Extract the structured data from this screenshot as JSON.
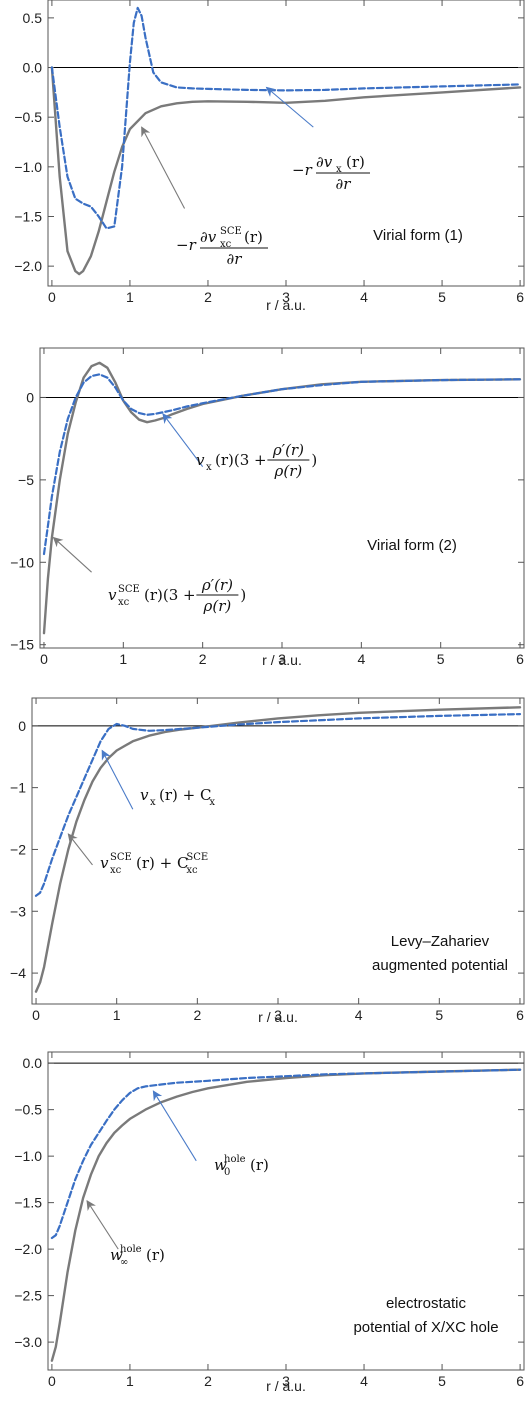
{
  "colors": {
    "grey_series": "#7a7a7a",
    "blue_series": "#3a6fc4",
    "zero_line": "#000000",
    "frame": "#555555"
  },
  "chart_data": [
    {
      "type": "line",
      "title": "",
      "xlabel": "r / a.u.",
      "ylabel": "",
      "xlim": [
        -0.05,
        6.05
      ],
      "ylim": [
        -2.2,
        0.68
      ],
      "xticks": [
        0,
        1,
        2,
        3,
        4,
        5,
        6
      ],
      "yticks": [
        0.5,
        0.0,
        -0.5,
        -1.0,
        -1.5,
        -2.0
      ],
      "ytick_labels": [
        "0.5",
        "0.0",
        "-0.5",
        "-1.0",
        "-1.5",
        "-2.0"
      ],
      "caption": [
        "Virial form (1)"
      ],
      "series": [
        {
          "style": "solid-grey",
          "x": [
            0,
            0.1,
            0.2,
            0.3,
            0.35,
            0.4,
            0.5,
            0.6,
            0.7,
            0.8,
            0.9,
            1.0,
            1.2,
            1.4,
            1.6,
            1.8,
            2.0,
            2.5,
            3.0,
            3.5,
            4.0,
            5.0,
            6.0
          ],
          "y": [
            0,
            -1.1,
            -1.85,
            -2.05,
            -2.08,
            -2.05,
            -1.9,
            -1.65,
            -1.35,
            -1.05,
            -0.8,
            -0.62,
            -0.46,
            -0.39,
            -0.36,
            -0.345,
            -0.34,
            -0.345,
            -0.355,
            -0.335,
            -0.3,
            -0.25,
            -0.2
          ]
        },
        {
          "style": "dashed-blue",
          "x": [
            0,
            0.1,
            0.2,
            0.3,
            0.4,
            0.5,
            0.6,
            0.7,
            0.8,
            0.9,
            1.0,
            1.05,
            1.1,
            1.15,
            1.2,
            1.3,
            1.4,
            1.6,
            1.8,
            2.0,
            2.5,
            3.0,
            3.5,
            4.0,
            5.0,
            6.0
          ],
          "y": [
            0,
            -0.6,
            -1.1,
            -1.32,
            -1.37,
            -1.4,
            -1.5,
            -1.62,
            -1.6,
            -1.0,
            0.05,
            0.45,
            0.6,
            0.52,
            0.3,
            -0.05,
            -0.15,
            -0.2,
            -0.21,
            -0.215,
            -0.225,
            -0.23,
            -0.225,
            -0.21,
            -0.19,
            -0.17
          ]
        }
      ],
      "annotations": [
        {
          "series": "dashed-blue",
          "label": {
            "prefix": "-r",
            "num_symbol": "∂v",
            "num_sub": "x",
            "num_arg": "(r)",
            "den": "∂r"
          }
        },
        {
          "series": "solid-grey",
          "label": {
            "prefix": "-r",
            "num_symbol": "∂v",
            "num_sub": "xc",
            "num_sup": "SCE",
            "num_arg": "(r)",
            "den": "∂r"
          }
        }
      ]
    },
    {
      "type": "line",
      "title": "",
      "xlabel": "r / a.u.",
      "ylabel": "",
      "xlim": [
        -0.05,
        6.05
      ],
      "ylim": [
        -15.2,
        3.0
      ],
      "xticks": [
        0,
        1,
        2,
        3,
        4,
        5,
        6
      ],
      "yticks": [
        0,
        -5,
        -10,
        -15
      ],
      "ytick_labels": [
        "0",
        "-5",
        "-10",
        "-15"
      ],
      "caption": [
        "Virial form (2)"
      ],
      "series": [
        {
          "style": "solid-grey",
          "x": [
            0,
            0.05,
            0.1,
            0.2,
            0.3,
            0.4,
            0.5,
            0.6,
            0.7,
            0.8,
            0.9,
            1.0,
            1.1,
            1.2,
            1.3,
            1.4,
            1.5,
            1.6,
            1.8,
            2.0,
            2.5,
            3.0,
            3.5,
            4.0,
            5.0,
            6.0
          ],
          "y": [
            -14.3,
            -11.0,
            -8.5,
            -5.0,
            -2.2,
            -0.3,
            1.2,
            1.9,
            2.1,
            1.8,
            0.9,
            -0.2,
            -0.9,
            -1.35,
            -1.5,
            -1.4,
            -1.25,
            -1.05,
            -0.7,
            -0.4,
            0.1,
            0.5,
            0.8,
            0.95,
            1.05,
            1.1
          ]
        },
        {
          "style": "dashed-blue",
          "x": [
            0,
            0.05,
            0.1,
            0.2,
            0.3,
            0.4,
            0.5,
            0.6,
            0.7,
            0.8,
            0.9,
            1.0,
            1.1,
            1.2,
            1.3,
            1.4,
            1.6,
            1.8,
            2.0,
            2.5,
            3.0,
            3.5,
            4.0,
            5.0,
            6.0
          ],
          "y": [
            -9.5,
            -7.8,
            -6.0,
            -3.3,
            -1.3,
            0.0,
            0.9,
            1.3,
            1.4,
            1.2,
            0.6,
            -0.2,
            -0.7,
            -0.95,
            -1.05,
            -1.0,
            -0.8,
            -0.55,
            -0.35,
            0.1,
            0.5,
            0.75,
            0.95,
            1.05,
            1.1
          ]
        }
      ],
      "annotations": [
        {
          "series": "dashed-blue",
          "label": {
            "lead": "v",
            "lead_sub": "x",
            "lead_arg": "(r)(3 +",
            "num": "ρ′(r)",
            "den": "ρ(r)",
            "tail": ")"
          }
        },
        {
          "series": "solid-grey",
          "label": {
            "lead": "v",
            "lead_sub": "xc",
            "lead_sup": "SCE",
            "lead_arg": "(r)(3 +",
            "num": "ρ′(r)",
            "den": "ρ(r)",
            "tail": ")"
          }
        }
      ]
    },
    {
      "type": "line",
      "title": "",
      "xlabel": "r / a.u.",
      "ylabel": "",
      "xlim": [
        -0.05,
        6.05
      ],
      "ylim": [
        -4.5,
        0.45
      ],
      "xticks": [
        0,
        1,
        2,
        3,
        4,
        5,
        6
      ],
      "yticks": [
        0,
        -1,
        -2,
        -3,
        -4
      ],
      "ytick_labels": [
        "0",
        "-1",
        "-2",
        "-3",
        "-4"
      ],
      "caption": [
        "Levy–Zahariev",
        "augmented potential"
      ],
      "series": [
        {
          "style": "solid-grey",
          "x": [
            0,
            0.05,
            0.1,
            0.2,
            0.3,
            0.4,
            0.5,
            0.6,
            0.7,
            0.8,
            0.9,
            1.0,
            1.2,
            1.4,
            1.6,
            1.8,
            2.0,
            2.5,
            3.0,
            3.5,
            4.0,
            5.0,
            6.0
          ],
          "y": [
            -4.3,
            -4.15,
            -3.9,
            -3.2,
            -2.55,
            -2.0,
            -1.55,
            -1.2,
            -0.9,
            -0.68,
            -0.52,
            -0.4,
            -0.25,
            -0.16,
            -0.1,
            -0.06,
            -0.03,
            0.05,
            0.12,
            0.17,
            0.21,
            0.26,
            0.3
          ]
        },
        {
          "style": "dashed-blue",
          "x": [
            0,
            0.05,
            0.1,
            0.2,
            0.3,
            0.4,
            0.5,
            0.6,
            0.7,
            0.8,
            0.9,
            1.0,
            1.1,
            1.2,
            1.4,
            1.6,
            1.8,
            2.0,
            2.5,
            3.0,
            3.5,
            4.0,
            5.0,
            6.0
          ],
          "y": [
            -2.75,
            -2.7,
            -2.55,
            -2.15,
            -1.8,
            -1.45,
            -1.15,
            -0.85,
            -0.55,
            -0.25,
            -0.05,
            0.03,
            0.0,
            -0.05,
            -0.08,
            -0.07,
            -0.05,
            -0.03,
            0.02,
            0.06,
            0.09,
            0.12,
            0.16,
            0.19
          ]
        }
      ],
      "annotations": [
        {
          "series": "dashed-blue",
          "label": {
            "lead": "v",
            "lead_sub": "x",
            "lead_arg": "(r) + C",
            "tail_sub": "x"
          }
        },
        {
          "series": "solid-grey",
          "label": {
            "lead": "v",
            "lead_sub": "xc",
            "lead_sup": "SCE",
            "lead_arg": "(r) + C",
            "tail_sub": "xc",
            "tail_sup": "SCE"
          }
        }
      ]
    },
    {
      "type": "line",
      "title": "",
      "xlabel": "r / a.u.",
      "ylabel": "",
      "xlim": [
        -0.05,
        6.05
      ],
      "ylim": [
        -3.3,
        0.12
      ],
      "xticks": [
        0,
        1,
        2,
        3,
        4,
        5,
        6
      ],
      "yticks": [
        0.0,
        -0.5,
        -1.0,
        -1.5,
        -2.0,
        -2.5,
        -3.0
      ],
      "ytick_labels": [
        "0.0",
        "-0.5",
        "-1.0",
        "-1.5",
        "-2.0",
        "-2.5",
        "-3.0"
      ],
      "caption": [
        "electrostatic",
        "potential of X/XC hole"
      ],
      "series": [
        {
          "style": "solid-grey",
          "x": [
            0,
            0.05,
            0.1,
            0.2,
            0.3,
            0.4,
            0.5,
            0.6,
            0.7,
            0.8,
            0.9,
            1.0,
            1.2,
            1.4,
            1.6,
            1.8,
            2.0,
            2.5,
            3.0,
            3.5,
            4.0,
            5.0,
            6.0
          ],
          "y": [
            -3.2,
            -3.05,
            -2.8,
            -2.25,
            -1.8,
            -1.45,
            -1.2,
            -1.0,
            -0.86,
            -0.75,
            -0.67,
            -0.6,
            -0.5,
            -0.42,
            -0.36,
            -0.31,
            -0.27,
            -0.2,
            -0.16,
            -0.13,
            -0.11,
            -0.09,
            -0.07
          ]
        },
        {
          "style": "dashed-blue",
          "x": [
            0,
            0.05,
            0.1,
            0.2,
            0.3,
            0.4,
            0.5,
            0.6,
            0.7,
            0.8,
            0.9,
            1.0,
            1.1,
            1.2,
            1.4,
            1.6,
            1.8,
            2.0,
            2.5,
            3.0,
            3.5,
            4.0,
            5.0,
            6.0
          ],
          "y": [
            -1.88,
            -1.85,
            -1.75,
            -1.5,
            -1.25,
            -1.05,
            -0.88,
            -0.75,
            -0.62,
            -0.5,
            -0.4,
            -0.32,
            -0.27,
            -0.25,
            -0.23,
            -0.21,
            -0.2,
            -0.19,
            -0.16,
            -0.14,
            -0.12,
            -0.11,
            -0.09,
            -0.07
          ]
        }
      ],
      "annotations": [
        {
          "series": "dashed-blue",
          "label": {
            "lead": "w",
            "lead_sub": "0",
            "lead_sup": "hole",
            "lead_arg": "(r)"
          }
        },
        {
          "series": "solid-grey",
          "label": {
            "lead": "w",
            "lead_sub": "∞",
            "lead_sup": "hole",
            "lead_arg": "(r)"
          }
        }
      ]
    }
  ]
}
